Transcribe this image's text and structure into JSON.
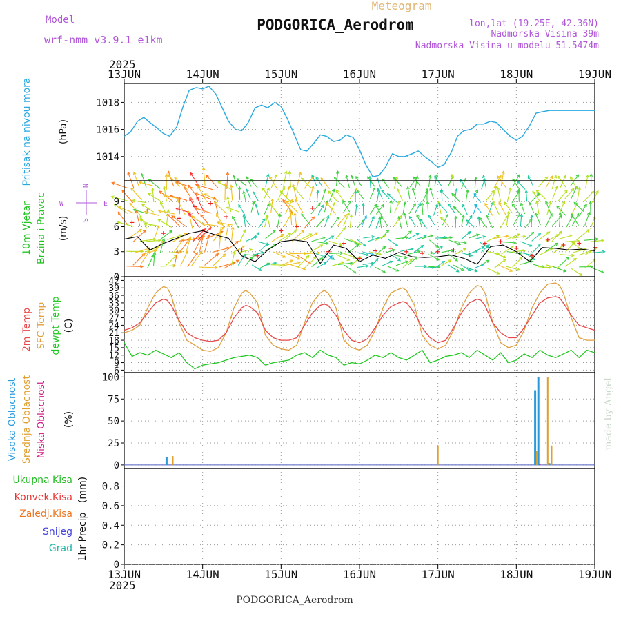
{
  "header": {
    "model_label": "Model",
    "model_name": "wrf-nmm_v3.9.1 e1km",
    "chart_title": "Meteogram",
    "station_name": "PODGORICA_Aerodrom",
    "lonlat": "lon,lat (19.25E, 42.36N)",
    "elevation": "Nadmorska Visina 39m",
    "model_elevation": "Nadmorska Visina u modelu 51.5474m",
    "credit": "made by Angel",
    "footer_station": "PODGORICA_Aerodrom",
    "year_top": "2025",
    "year_bottom": "2025"
  },
  "colors": {
    "model": "#b157d8",
    "title": "#e0b878",
    "pressure": "#29a9e0",
    "wind_label": "#22c422",
    "temp_2m": "#e84848",
    "sfc_temp": "#e0a040",
    "dewpoint": "#22c822",
    "cloud_high": "#2a9adc",
    "cloud_mid": "#e0a030",
    "cloud_low": "#d0208a",
    "precip_total": "#22bb22",
    "precip_conv": "#ee3333",
    "precip_freezing": "#ee7722",
    "precip_snow": "#4444dd",
    "precip_hail": "#22b8a8",
    "credit": "#c9d8c9"
  },
  "chart_data": [
    {
      "id": "pressure",
      "type": "line",
      "title": "Meteogram",
      "ylabel_lines": [
        "Pritisak na nivou mora"
      ],
      "unit": "(hPa)",
      "x_ticks": [
        "13JUN",
        "14JUN",
        "15JUN",
        "16JUN",
        "17JUN",
        "18JUN",
        "19JUN"
      ],
      "ylim": [
        1012.2,
        1019.4
      ],
      "y_ticks": [
        1014,
        1016,
        1018
      ],
      "grid": true,
      "series": [
        {
          "name": "Pritisak na nivou mora",
          "x": [
            0,
            0.08,
            0.17,
            0.25,
            0.33,
            0.42,
            0.5,
            0.58,
            0.67,
            0.75,
            0.83,
            0.92,
            1,
            1.08,
            1.17,
            1.25,
            1.33,
            1.42,
            1.5,
            1.58,
            1.67,
            1.75,
            1.83,
            1.92,
            2,
            2.08,
            2.17,
            2.25,
            2.33,
            2.42,
            2.5,
            2.58,
            2.67,
            2.75,
            2.83,
            2.92,
            3,
            3.08,
            3.17,
            3.25,
            3.33,
            3.42,
            3.5,
            3.58,
            3.67,
            3.75,
            3.83,
            3.92,
            4,
            4.08,
            4.17,
            4.25,
            4.33,
            4.42,
            4.5,
            4.58,
            4.67,
            4.75,
            4.83,
            4.92,
            5,
            5.08,
            5.17,
            5.25,
            5.33,
            5.42,
            5.5,
            5.58,
            5.67,
            5.75,
            5.83,
            5.92,
            6
          ],
          "values": [
            1015.5,
            1015.8,
            1016.6,
            1016.9,
            1016.5,
            1016.1,
            1015.7,
            1015.5,
            1016.2,
            1017.7,
            1018.9,
            1019.1,
            1019.0,
            1019.2,
            1018.6,
            1017.6,
            1016.6,
            1016.0,
            1015.9,
            1016.5,
            1017.6,
            1017.8,
            1017.6,
            1018.0,
            1017.7,
            1016.8,
            1015.6,
            1014.5,
            1014.4,
            1015.0,
            1015.6,
            1015.5,
            1015.1,
            1015.2,
            1015.6,
            1015.4,
            1014.5,
            1013.4,
            1012.5,
            1012.6,
            1013.2,
            1014.2,
            1014.0,
            1014.0,
            1014.2,
            1014.4,
            1014.0,
            1013.6,
            1013.2,
            1013.4,
            1014.3,
            1015.5,
            1015.9,
            1016.0,
            1016.4,
            1016.4,
            1016.6,
            1016.5,
            1016.0,
            1015.5,
            1015.2,
            1015.5,
            1016.3,
            1017.2,
            1017.3,
            1017.4,
            1017.4,
            1017.4,
            1017.4,
            1017.4,
            1017.4,
            1017.4,
            1017.4
          ]
        }
      ]
    },
    {
      "id": "wind",
      "type": "line",
      "ylabel_lines": [
        "10m Vjetar",
        "Brzina i Pravac"
      ],
      "unit": "(m/s)",
      "compass": {
        "n": "N",
        "s": "S",
        "e": "E",
        "w": "W"
      },
      "ylim": [
        0,
        11.5
      ],
      "y_ticks": [
        0,
        3,
        6,
        9
      ],
      "grid": true,
      "series": [
        {
          "name": "10m Vjetar",
          "x": [
            0,
            0.17,
            0.33,
            0.5,
            0.67,
            0.83,
            1,
            1.17,
            1.33,
            1.5,
            1.67,
            1.83,
            2,
            2.17,
            2.33,
            2.5,
            2.67,
            2.83,
            3,
            3.17,
            3.33,
            3.5,
            3.67,
            3.83,
            4,
            4.17,
            4.33,
            4.5,
            4.67,
            4.83,
            5,
            5.17,
            5.33,
            5.5,
            5.67,
            5.83,
            6
          ],
          "values": [
            4.5,
            4.8,
            3.2,
            4.0,
            4.6,
            5.2,
            5.5,
            5.0,
            4.6,
            2.5,
            1.8,
            3.2,
            4.2,
            4.4,
            4.2,
            1.6,
            3.8,
            3.4,
            1.8,
            2.6,
            2.2,
            2.9,
            2.4,
            2.3,
            2.4,
            2.6,
            2.2,
            1.5,
            3.6,
            3.8,
            3.0,
            1.8,
            3.5,
            3.4,
            3.2,
            3.3,
            3.1
          ]
        },
        {
          "name": "gust",
          "x": [
            0.1,
            0.3,
            0.5,
            0.7,
            0.9,
            1.1,
            1.3,
            1.5,
            1.7,
            2.0,
            2.2,
            2.4,
            2.6,
            2.8,
            3.0,
            3.2,
            3.4,
            3.6,
            3.8,
            4.0,
            4.2,
            4.4,
            4.6,
            4.8,
            5.0,
            5.2,
            5.4,
            5.6,
            5.8,
            6.0
          ],
          "values": [
            6.5,
            8.0,
            5.2,
            7.0,
            8.4,
            8.8,
            7.2,
            3.2,
            2.5,
            5.5,
            6.0,
            8.2,
            3.0,
            4.0,
            2.2,
            3.1,
            3.4,
            3.0,
            2.8,
            3.0,
            3.2,
            2.6,
            4.0,
            4.2,
            3.4,
            2.5,
            4.4,
            3.8,
            4.0,
            3.5
          ]
        }
      ]
    },
    {
      "id": "temperature",
      "type": "line",
      "ylabel_lines": [
        "2m Temp",
        "SFC Temp",
        "dewpt Temp"
      ],
      "unit": "(C)",
      "ylim": [
        5,
        43.5
      ],
      "y_ticks": [
        6,
        9,
        12,
        15,
        18,
        21,
        24,
        27,
        30,
        33,
        36,
        39,
        42
      ],
      "grid": true,
      "series": [
        {
          "name": "2m Temp",
          "x": [
            0,
            0.1,
            0.2,
            0.3,
            0.4,
            0.5,
            0.55,
            0.6,
            0.7,
            0.8,
            0.9,
            1.0,
            1.1,
            1.2,
            1.3,
            1.4,
            1.5,
            1.55,
            1.6,
            1.7,
            1.8,
            1.9,
            2.0,
            2.1,
            2.2,
            2.3,
            2.4,
            2.5,
            2.55,
            2.6,
            2.7,
            2.8,
            2.9,
            3.0,
            3.1,
            3.2,
            3.3,
            3.4,
            3.5,
            3.55,
            3.6,
            3.7,
            3.8,
            3.9,
            4.0,
            4.1,
            4.2,
            4.3,
            4.4,
            4.5,
            4.55,
            4.6,
            4.7,
            4.8,
            4.9,
            5.0,
            5.1,
            5.2,
            5.3,
            5.4,
            5.5,
            5.55,
            5.6,
            5.7,
            5.8,
            5.9,
            6.0
          ],
          "values": [
            22,
            23,
            25,
            29,
            33,
            34.5,
            34,
            32,
            26,
            21,
            19,
            18,
            17.5,
            18,
            21,
            27,
            31,
            32,
            31.5,
            29,
            22,
            19,
            18,
            18,
            19,
            24,
            29,
            32,
            32.5,
            32,
            28,
            22,
            18,
            17,
            18.5,
            23,
            28,
            31.5,
            33,
            33.5,
            33,
            29,
            23,
            19,
            17,
            18,
            23,
            29,
            33,
            34.5,
            34,
            32,
            25,
            21,
            19,
            19,
            23,
            28,
            33,
            35,
            35.5,
            35,
            33,
            28,
            24,
            23,
            22
          ]
        },
        {
          "name": "SFC Temp",
          "x": [
            0,
            0.1,
            0.2,
            0.3,
            0.4,
            0.5,
            0.55,
            0.6,
            0.7,
            0.8,
            0.9,
            1.0,
            1.1,
            1.2,
            1.3,
            1.4,
            1.5,
            1.55,
            1.6,
            1.7,
            1.8,
            1.9,
            2.0,
            2.1,
            2.2,
            2.3,
            2.4,
            2.5,
            2.55,
            2.6,
            2.7,
            2.8,
            2.9,
            3.0,
            3.1,
            3.2,
            3.3,
            3.4,
            3.5,
            3.55,
            3.6,
            3.7,
            3.8,
            3.9,
            4.0,
            4.1,
            4.2,
            4.3,
            4.4,
            4.5,
            4.55,
            4.6,
            4.7,
            4.8,
            4.9,
            5.0,
            5.1,
            5.2,
            5.3,
            5.4,
            5.5,
            5.55,
            5.6,
            5.7,
            5.8,
            5.9,
            6.0
          ],
          "values": [
            21,
            22,
            24,
            31,
            37,
            39.5,
            39,
            36,
            25,
            18,
            16,
            14,
            13.5,
            15,
            21,
            31,
            37,
            38,
            37,
            33,
            20,
            16,
            14.5,
            14,
            16,
            25,
            33,
            37,
            38,
            37,
            31,
            18,
            15,
            14,
            16,
            22,
            31,
            37,
            38.5,
            39,
            38,
            32,
            20,
            16,
            14.5,
            16,
            22,
            31,
            37,
            40,
            39.5,
            37,
            25,
            17,
            15,
            16,
            22,
            31,
            37,
            40.5,
            41,
            40,
            37,
            27,
            19,
            18,
            18
          ]
        },
        {
          "name": "dewpt Temp",
          "x": [
            0,
            0.1,
            0.2,
            0.3,
            0.4,
            0.5,
            0.6,
            0.7,
            0.8,
            0.9,
            1.0,
            1.1,
            1.2,
            1.3,
            1.4,
            1.5,
            1.6,
            1.7,
            1.8,
            1.9,
            2.0,
            2.1,
            2.2,
            2.3,
            2.4,
            2.5,
            2.6,
            2.7,
            2.8,
            2.9,
            3.0,
            3.1,
            3.2,
            3.3,
            3.4,
            3.5,
            3.6,
            3.7,
            3.8,
            3.9,
            4.0,
            4.1,
            4.2,
            4.3,
            4.4,
            4.5,
            4.6,
            4.7,
            4.8,
            4.9,
            5.0,
            5.1,
            5.2,
            5.3,
            5.4,
            5.5,
            5.6,
            5.7,
            5.8,
            5.9,
            6.0
          ],
          "values": [
            17,
            11.5,
            13,
            12,
            14,
            12.5,
            11,
            13,
            9,
            6.5,
            8,
            8.5,
            9,
            10,
            11,
            11.5,
            12,
            11,
            8,
            9,
            9.5,
            10,
            12,
            13,
            11,
            14,
            12,
            11,
            8,
            9,
            8.5,
            10,
            12,
            11,
            13,
            11,
            10,
            12,
            14,
            9,
            10,
            11.5,
            12,
            13,
            11,
            14,
            12,
            10,
            13,
            9,
            10,
            12.5,
            11,
            14,
            12,
            11,
            12.5,
            14,
            11,
            14,
            13
          ]
        }
      ]
    },
    {
      "id": "cloud",
      "type": "bar",
      "ylabel_lines": [
        "Visoka Oblacnost",
        "Srednja Oblacnost",
        "Niska Oblacnost"
      ],
      "unit": "(%)",
      "ylim": [
        -4,
        105
      ],
      "y_ticks": [
        0,
        25,
        50,
        75,
        100
      ],
      "grid": true,
      "series": [
        {
          "name": "Visoka Oblacnost",
          "x": [
            0.54,
            5.24,
            5.28,
            5.42
          ],
          "values": [
            9,
            85,
            100,
            2
          ]
        },
        {
          "name": "Srednja Oblacnost",
          "x": [
            0.62,
            4.0,
            5.26,
            5.4,
            5.45
          ],
          "values": [
            10,
            22,
            16,
            100,
            22
          ]
        },
        {
          "name": "Niska Oblacnost",
          "x": [
            5.3
          ],
          "values": [
            1
          ]
        }
      ]
    },
    {
      "id": "precip",
      "type": "bar",
      "ylabel_lines": [
        "1hr Precip"
      ],
      "unit": "(mm)",
      "legend": [
        "Ukupna Kisa",
        "Konvek.Kisa",
        "Zaledj.Kisa",
        "Snijeg",
        "Grad"
      ],
      "x_ticks": [
        "13JUN",
        "14JUN",
        "15JUN",
        "16JUN",
        "17JUN",
        "18JUN",
        "19JUN"
      ],
      "ylim": [
        0,
        0.98
      ],
      "y_ticks": [
        0,
        0.2,
        0.4,
        0.6,
        0.8
      ],
      "y_tick_labels": [
        "0",
        "0.2",
        "0.4",
        "0.6",
        "0.8"
      ],
      "grid": true,
      "series": [
        {
          "name": "Ukupna Kisa",
          "x": [],
          "values": []
        }
      ]
    }
  ]
}
